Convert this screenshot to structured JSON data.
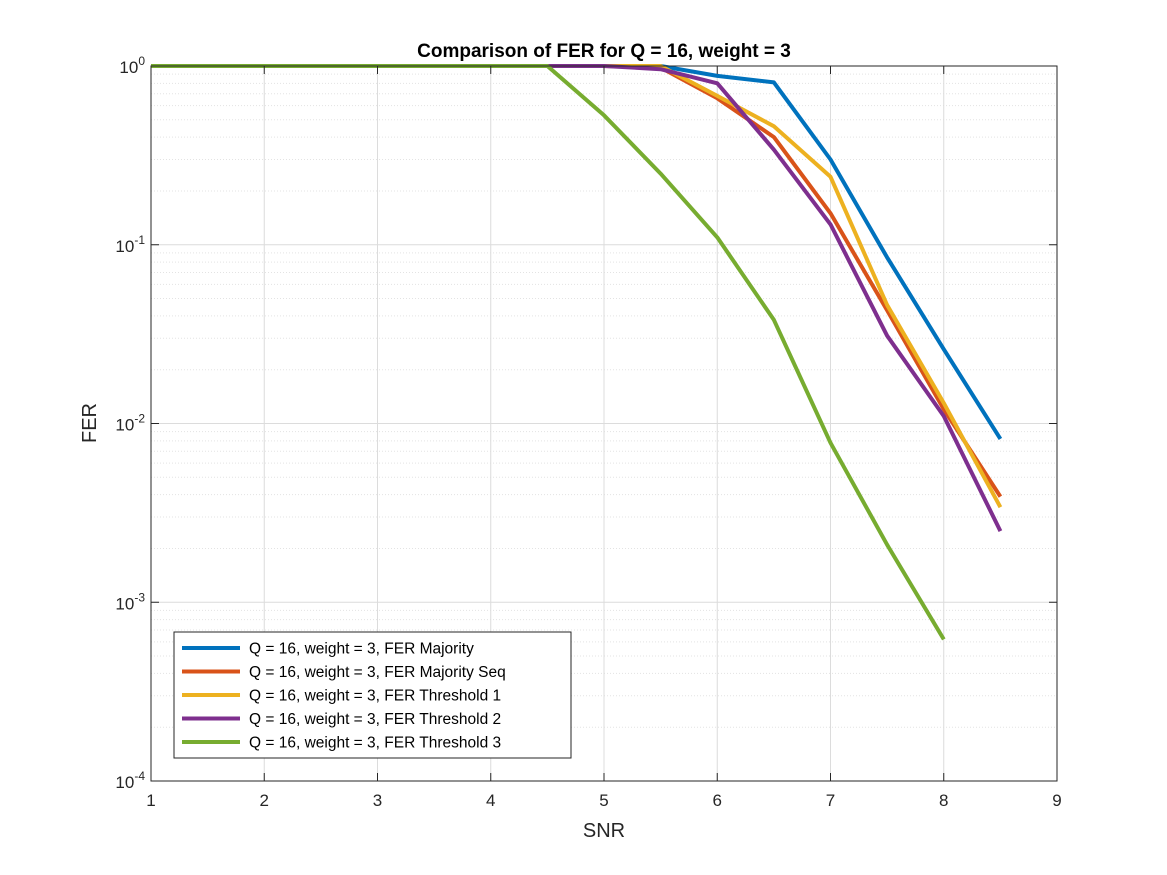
{
  "chart_data": {
    "type": "line",
    "title": "Comparison of FER for Q = 16, weight = 3",
    "xlabel": "SNR",
    "ylabel": "FER",
    "xlim": [
      1,
      9
    ],
    "ylim": [
      0.0001,
      1
    ],
    "yscale": "log",
    "grid": true,
    "minor_grid": true,
    "legend_position": "bottom-left",
    "x_ticks": [
      "1",
      "2",
      "3",
      "4",
      "5",
      "6",
      "7",
      "8",
      "9"
    ],
    "y_ticks": [
      {
        "base": "10",
        "exp": "-4"
      },
      {
        "base": "10",
        "exp": "-3"
      },
      {
        "base": "10",
        "exp": "-2"
      },
      {
        "base": "10",
        "exp": "-1"
      },
      {
        "base": "10",
        "exp": "0"
      }
    ],
    "series": [
      {
        "name": "Q = 16, weight = 3, FER Majority",
        "color": "#0072BD",
        "x": [
          1,
          1.5,
          2,
          2.5,
          3,
          3.5,
          4,
          4.5,
          5,
          5.5,
          6,
          6.5,
          7,
          7.5,
          8,
          8.5
        ],
        "y": [
          1,
          1,
          1,
          1,
          1,
          1,
          1,
          1,
          1,
          1,
          0.88,
          0.81,
          0.3,
          0.085,
          0.026,
          0.0082
        ]
      },
      {
        "name": "Q = 16, weight = 3, FER Majority Seq",
        "color": "#D95319",
        "x": [
          1,
          1.5,
          2,
          2.5,
          3,
          3.5,
          4,
          4.5,
          5,
          5.5,
          6,
          6.5,
          7,
          7.5,
          8,
          8.5
        ],
        "y": [
          1,
          1,
          1,
          1,
          1,
          1,
          1,
          1,
          1,
          0.98,
          0.66,
          0.4,
          0.15,
          0.043,
          0.012,
          0.0039
        ]
      },
      {
        "name": "Q = 16, weight = 3, FER Threshold 1",
        "color": "#EDB120",
        "x": [
          1,
          1.5,
          2,
          2.5,
          3,
          3.5,
          4,
          4.5,
          5,
          5.5,
          6,
          6.5,
          7,
          7.5,
          8,
          8.5
        ],
        "y": [
          1,
          1,
          1,
          1,
          1,
          1,
          1,
          1,
          1,
          1,
          0.68,
          0.46,
          0.24,
          0.046,
          0.013,
          0.0034
        ]
      },
      {
        "name": "Q = 16, weight = 3, FER Threshold 2",
        "color": "#7E2F8E",
        "x": [
          1,
          1.5,
          2,
          2.5,
          3,
          3.5,
          4,
          4.5,
          5,
          5.5,
          6,
          6.5,
          7,
          7.5,
          8,
          8.5
        ],
        "y": [
          1,
          1,
          1,
          1,
          1,
          1,
          1,
          1,
          1,
          0.96,
          0.8,
          0.34,
          0.13,
          0.031,
          0.011,
          0.0025
        ]
      },
      {
        "name": "Q = 16, weight = 3, FER Threshold 3",
        "color": "#77AC30",
        "x": [
          1,
          1.5,
          2,
          2.5,
          3,
          3.5,
          4,
          4.5,
          5,
          5.5,
          6,
          6.5,
          7,
          7.5,
          8
        ],
        "y": [
          1,
          1,
          1,
          1,
          1,
          1,
          1,
          1,
          0.53,
          0.25,
          0.11,
          0.038,
          0.0078,
          0.0021,
          0.00062
        ]
      }
    ]
  }
}
